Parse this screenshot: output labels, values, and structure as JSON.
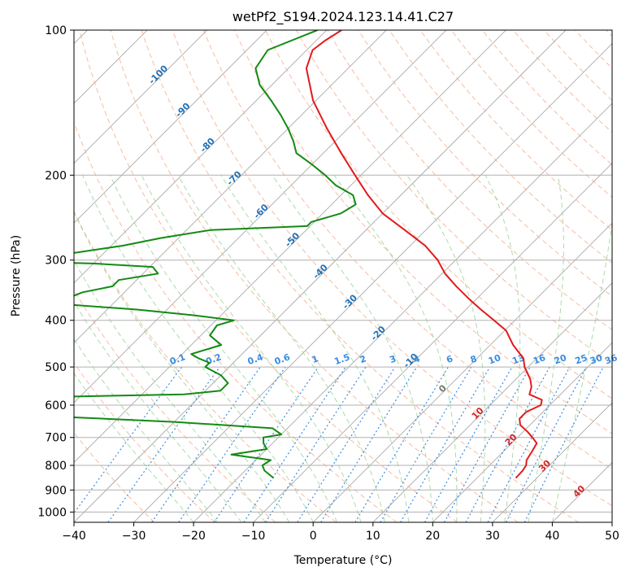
{
  "chart_data": {
    "type": "skew-t",
    "title": "wetPf2_S194.2024.123.14.41.C27",
    "xlabel": "Temperature (°C)",
    "ylabel": "Pressure (hPa)",
    "xlim": [
      -40,
      50
    ],
    "ylim": [
      1050,
      100
    ],
    "y_scale": "log",
    "x_ticks": [
      -40,
      -30,
      -20,
      -10,
      0,
      10,
      20,
      30,
      40,
      50
    ],
    "y_ticks": [
      100,
      200,
      300,
      400,
      500,
      600,
      700,
      800,
      900,
      1000
    ],
    "grid": true,
    "colors": {
      "temperature": "#e31a1c",
      "dewpoint": "#138a13",
      "isotherm": "#a0a0a0",
      "dry_adiabat": "#f4a582",
      "moist_adiabat": "#9ed49e",
      "mixing_ratio": "#3a8ee0",
      "temp_label": "#2171b5",
      "ccl_label": "#d62728"
    },
    "isotherm_labels": [
      {
        "text": "-100",
        "t": -100,
        "p": 125
      },
      {
        "text": "-90",
        "t": -90,
        "p": 148
      },
      {
        "text": "-80",
        "t": -80,
        "p": 175
      },
      {
        "text": "-70",
        "t": -70,
        "p": 205
      },
      {
        "text": "-60",
        "t": -60,
        "p": 240
      },
      {
        "text": "-50",
        "t": -50,
        "p": 275
      },
      {
        "text": "-40",
        "t": -40,
        "p": 320
      },
      {
        "text": "-30",
        "t": -30,
        "p": 370
      },
      {
        "text": "-20",
        "t": -20,
        "p": 430
      },
      {
        "text": "-10",
        "t": -10,
        "p": 490
      },
      {
        "text": "0",
        "t": 0,
        "p": 560
      },
      {
        "text": "10",
        "t": 10,
        "p": 630
      },
      {
        "text": "20",
        "t": 20,
        "p": 715
      },
      {
        "text": "30",
        "t": 30,
        "p": 810
      },
      {
        "text": "40",
        "t": 40,
        "p": 915
      }
    ],
    "mixing_ratio_labels": [
      "0.1",
      "0.2",
      "0.4",
      "0.6",
      "1",
      "1.5",
      "2",
      "3",
      "4",
      "6",
      "8",
      "10",
      "13",
      "16",
      "20",
      "25",
      "30",
      "36"
    ],
    "mixing_ratio_label_x": [
      -22.5,
      -16.5,
      -9.5,
      -5,
      0.5,
      5,
      8.5,
      13.5,
      17.5,
      23,
      27,
      30.5,
      34.5,
      38,
      41.5,
      45,
      47.5,
      50
    ],
    "series": [
      {
        "name": "temperature",
        "p": [
          850,
          820,
          800,
          780,
          750,
          720,
          700,
          680,
          660,
          640,
          620,
          600,
          585,
          570,
          550,
          530,
          500,
          480,
          450,
          420,
          400,
          380,
          360,
          340,
          320,
          300,
          280,
          260,
          240,
          220,
          200,
          180,
          160,
          140,
          120,
          110,
          105,
          100
        ],
        "t": [
          26.5,
          26.4,
          26.1,
          25.3,
          24.8,
          24.2,
          22.5,
          20.6,
          18.4,
          17.2,
          17.2,
          18.5,
          17.8,
          14.8,
          13.9,
          12.4,
          9.4,
          7.8,
          3.8,
          0.2,
          -3.5,
          -7.5,
          -11.5,
          -15.5,
          -19.5,
          -23.0,
          -27.5,
          -33.5,
          -40.0,
          -45.5,
          -51.0,
          -57.0,
          -63.5,
          -70.5,
          -77.0,
          -79.0,
          -78.5,
          -77.5
        ]
      },
      {
        "name": "dewpoint",
        "p": [
          850,
          820,
          800,
          780,
          760,
          740,
          720,
          700,
          690,
          670,
          650,
          630,
          610,
          600,
          580,
          570,
          560,
          540,
          520,
          500,
          490,
          480,
          470,
          450,
          430,
          410,
          400,
          390,
          380,
          370,
          360,
          350,
          340,
          330,
          320,
          310,
          305,
          300,
          290,
          280,
          270,
          260,
          255,
          250,
          240,
          230,
          220,
          210,
          200,
          190,
          180,
          170,
          160,
          150,
          140,
          130,
          120,
          110,
          100
        ],
        "t": [
          -14.0,
          -16.8,
          -18.0,
          -17.5,
          -25.0,
          -20.0,
          -21.5,
          -22.5,
          -20.0,
          -22.5,
          -40.0,
          -65.0,
          -110.0,
          -95.0,
          -75.0,
          -43.0,
          -37.5,
          -37.5,
          -40.0,
          -44.0,
          -44.0,
          -46.5,
          -48.5,
          -45.0,
          -48.5,
          -49.0,
          -47.0,
          -55.0,
          -65.0,
          -79.0,
          -78.5,
          -77.0,
          -73.0,
          -73.0,
          -67.5,
          -69.5,
          -80.0,
          -102.0,
          -85.0,
          -78.0,
          -73.0,
          -66.0,
          -50.5,
          -50.5,
          -47.0,
          -46.0,
          -48.0,
          -52.5,
          -56.0,
          -60.0,
          -64.5,
          -67.0,
          -70.0,
          -73.5,
          -77.5,
          -82.0,
          -85.5,
          -86.5,
          -81.5
        ]
      }
    ]
  }
}
